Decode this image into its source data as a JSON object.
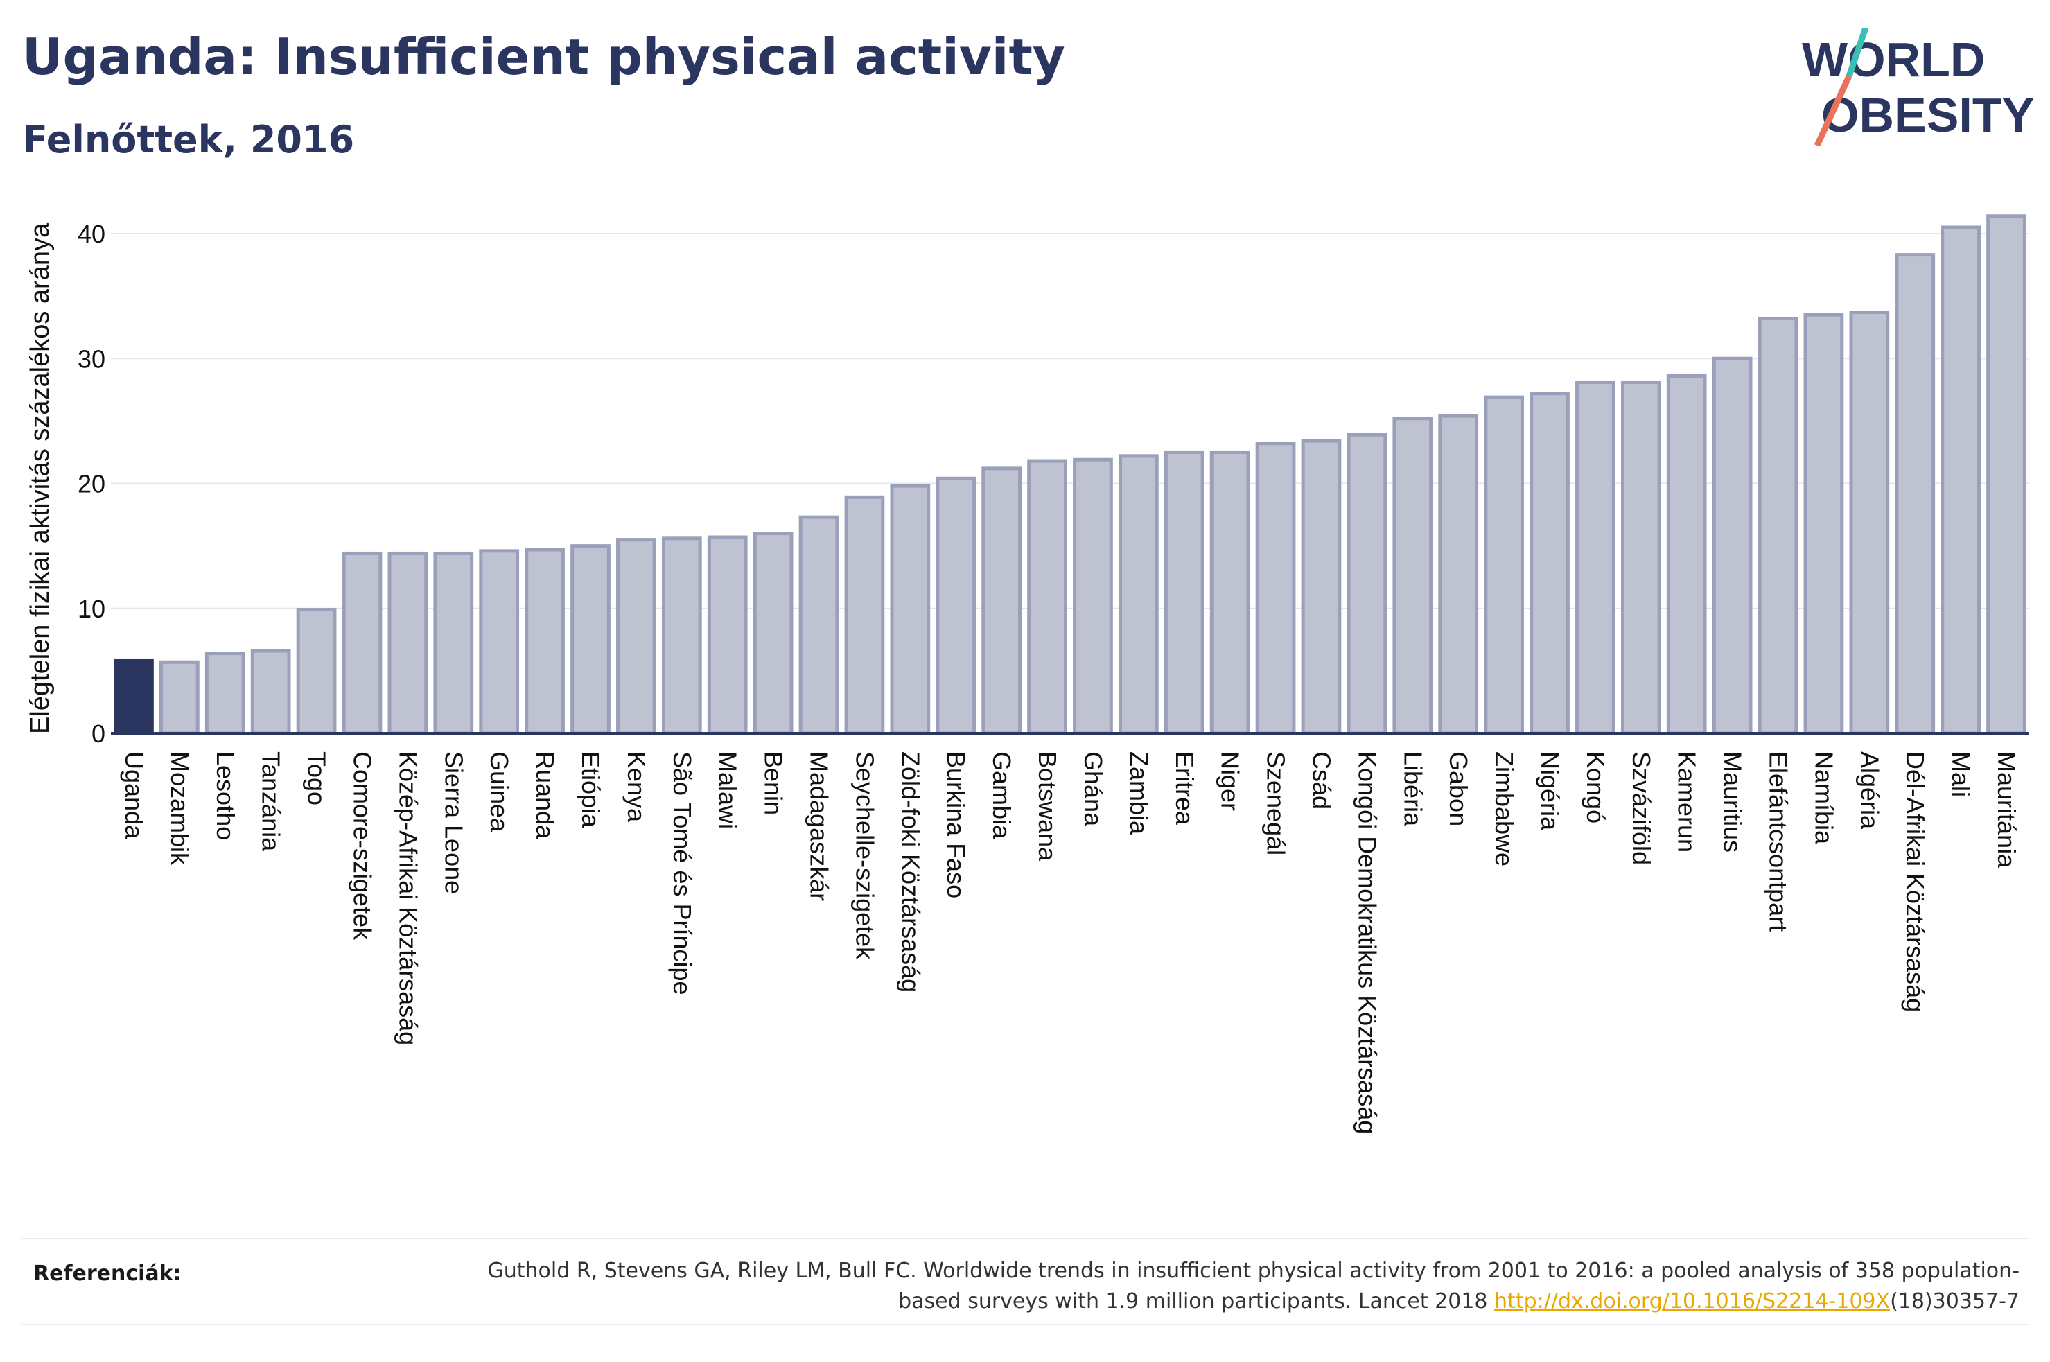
{
  "title": "Uganda: Insufficient physical activity",
  "subtitle": "Felnőttek, 2016",
  "logo": {
    "line1": "WORLD",
    "line2": "OBESITY",
    "slash_color_top": "#3bbfb4",
    "slash_color_bottom": "#e8735a",
    "text_color": "#2a3560"
  },
  "colors": {
    "highlight_bar": "#2a3560",
    "bar_fill": "#bfc3d1",
    "bar_stroke": "#9aa0ba",
    "axis": "#2a3560",
    "grid": "#e6e6ea"
  },
  "chart_data": {
    "type": "bar",
    "ylabel": "Elégtelen fizikai aktivitás százalékos aránya",
    "xlabel": "",
    "ylim": [
      0,
      43
    ],
    "yticks": [
      0,
      10,
      20,
      30,
      40
    ],
    "grid": true,
    "highlight": "Uganda",
    "categories": [
      "Uganda",
      "Mozambik",
      "Lesotho",
      "Tanzánia",
      "Togo",
      "Comore-szigetek",
      "Közép-Afrikai Köztársaság",
      "Sierra Leone",
      "Guinea",
      "Ruanda",
      "Etiópia",
      "Kenya",
      "São Tomé és Príncipe",
      "Malawi",
      "Benin",
      "Madagaszkár",
      "Seychelle-szigetek",
      "Zöld-foki Köztársaság",
      "Burkina Faso",
      "Gambia",
      "Botswana",
      "Ghána",
      "Zambia",
      "Eritrea",
      "Niger",
      "Szenegál",
      "Csád",
      "Kongói Demokratikus Köztársaság",
      "Libéria",
      "Gabon",
      "Zimbabwe",
      "Nigéria",
      "Kongó",
      "Szváziföld",
      "Kamerun",
      "Mauritius",
      "Elefántcsontpart",
      "Namíbia",
      "Algéria",
      "Dél-Afrikai Köztársaság",
      "Mali",
      "Mauritánia"
    ],
    "values": [
      5.8,
      5.7,
      6.4,
      6.6,
      9.9,
      14.4,
      14.4,
      14.4,
      14.6,
      14.7,
      15.0,
      15.5,
      15.6,
      15.7,
      16.0,
      17.3,
      18.9,
      19.8,
      20.4,
      21.2,
      21.8,
      21.9,
      22.2,
      22.5,
      22.5,
      23.2,
      23.4,
      23.9,
      25.2,
      25.4,
      26.9,
      27.2,
      28.1,
      28.1,
      28.6,
      30.0,
      33.2,
      33.5,
      33.7,
      38.3,
      40.5,
      41.4
    ]
  },
  "references": {
    "label": "Referenciák:",
    "text_before": "Guthold R, Stevens GA, Riley LM, Bull FC. Worldwide trends in insufficient physical activity from 2001 to 2016: a pooled analysis of 358 population-based surveys with 1.9 million participants. Lancet 2018 ",
    "link": "http://dx.doi.org/10.1016/S2214-109X",
    "text_after": "(18)30357-7"
  }
}
